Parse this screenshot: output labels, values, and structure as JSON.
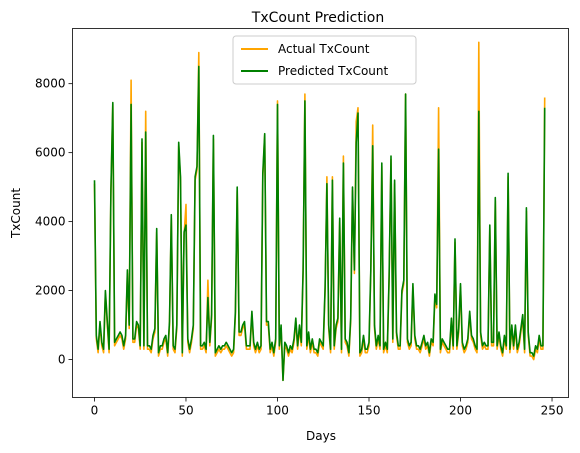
{
  "chart_data": {
    "type": "line",
    "title": "TxCount Prediction",
    "xlabel": "Days",
    "ylabel": "TxCount",
    "xlim": [
      -12,
      259
    ],
    "ylim": [
      -1100,
      9600
    ],
    "xticks": [
      0,
      50,
      100,
      150,
      200,
      250
    ],
    "yticks": [
      0,
      2000,
      4000,
      6000,
      8000
    ],
    "grid": false,
    "legend": "top-center",
    "colors": {
      "Actual TxCount": "#ffa500",
      "Predicted TxCount": "#008000"
    },
    "series": [
      {
        "name": "Actual TxCount",
        "values": [
          5100,
          600,
          200,
          1000,
          400,
          200,
          1900,
          1000,
          200,
          4800,
          7400,
          400,
          500,
          600,
          700,
          600,
          300,
          600,
          2500,
          900,
          8100,
          500,
          500,
          1000,
          900,
          300,
          6300,
          300,
          7200,
          300,
          300,
          200,
          600,
          800,
          3700,
          100,
          300,
          300,
          500,
          600,
          100,
          1000,
          4100,
          300,
          200,
          900,
          6200,
          5200,
          100,
          3600,
          4500,
          500,
          200,
          500,
          900,
          5200,
          5500,
          8900,
          300,
          300,
          400,
          200,
          2300,
          400,
          1200,
          6400,
          100,
          200,
          300,
          200,
          300,
          300,
          400,
          300,
          200,
          100,
          200,
          1300,
          4900,
          700,
          700,
          900,
          1000,
          300,
          300,
          300,
          1300,
          400,
          200,
          400,
          200,
          300,
          5300,
          6500,
          1000,
          1000,
          200,
          400,
          100,
          500,
          7500,
          300,
          900,
          -600,
          400,
          300,
          100,
          300,
          200,
          500,
          1100,
          300,
          900,
          400,
          2500,
          7700,
          300,
          700,
          200,
          500,
          200,
          200,
          100,
          500,
          400,
          300,
          2000,
          5300,
          900,
          200,
          5300,
          300,
          900,
          1100,
          4000,
          200,
          5900,
          500,
          400,
          100,
          1100,
          4900,
          2500,
          6900,
          7300,
          100,
          200,
          600,
          200,
          200,
          400,
          2500,
          6800,
          900,
          300,
          600,
          300,
          5600,
          200,
          400,
          200,
          2300,
          5800,
          500,
          5100,
          700,
          300,
          300,
          1900,
          2200,
          7700,
          500,
          300,
          400,
          2100,
          600,
          300,
          300,
          200,
          400,
          600,
          300,
          400,
          100,
          500,
          400,
          1800,
          1500,
          7300,
          200,
          500,
          400,
          300,
          200,
          200,
          1100,
          300,
          3400,
          300,
          800,
          2100,
          400,
          200,
          300,
          500,
          1300,
          600,
          500,
          300,
          200,
          9200,
          700,
          300,
          400,
          300,
          300,
          3800,
          400,
          400,
          4600,
          300,
          700,
          300,
          100,
          600,
          300,
          5300,
          200,
          900,
          300,
          900,
          200,
          400,
          800,
          1200,
          200,
          4300,
          700,
          100,
          100,
          0,
          300,
          200,
          600,
          300,
          300,
          7600
        ]
      },
      {
        "name": "Predicted TxCount",
        "values": [
          5200,
          700,
          300,
          1100,
          500,
          300,
          2000,
          1100,
          300,
          4900,
          7450,
          500,
          600,
          700,
          800,
          700,
          400,
          700,
          2600,
          1000,
          7400,
          600,
          600,
          1100,
          1000,
          400,
          6400,
          400,
          6600,
          400,
          400,
          300,
          700,
          900,
          3800,
          200,
          400,
          400,
          600,
          700,
          200,
          1100,
          4200,
          400,
          300,
          1000,
          6300,
          5300,
          200,
          3700,
          3900,
          600,
          300,
          600,
          1000,
          5300,
          5600,
          8500,
          400,
          400,
          500,
          300,
          1800,
          500,
          1300,
          6500,
          200,
          300,
          400,
          300,
          400,
          400,
          500,
          400,
          300,
          200,
          300,
          1400,
          5000,
          800,
          800,
          1000,
          1100,
          400,
          400,
          400,
          1400,
          500,
          300,
          500,
          300,
          400,
          5400,
          6550,
          1100,
          1100,
          300,
          500,
          200,
          600,
          7400,
          400,
          1000,
          -600,
          500,
          400,
          200,
          400,
          300,
          600,
          1200,
          400,
          1000,
          500,
          2600,
          7500,
          400,
          800,
          300,
          600,
          300,
          300,
          200,
          600,
          500,
          400,
          2100,
          5100,
          1000,
          300,
          5200,
          400,
          1000,
          1200,
          4100,
          300,
          5700,
          600,
          500,
          200,
          1200,
          5000,
          2600,
          6300,
          7150,
          200,
          300,
          700,
          300,
          300,
          500,
          2600,
          6200,
          1000,
          400,
          700,
          400,
          5700,
          300,
          500,
          300,
          2400,
          5900,
          600,
          5200,
          800,
          400,
          400,
          2000,
          2300,
          7700,
          600,
          400,
          500,
          2200,
          700,
          400,
          400,
          300,
          500,
          700,
          400,
          500,
          200,
          600,
          500,
          1900,
          1600,
          6100,
          300,
          600,
          500,
          400,
          300,
          300,
          1200,
          400,
          3500,
          400,
          900,
          2200,
          500,
          300,
          400,
          600,
          1400,
          700,
          600,
          400,
          300,
          7200,
          800,
          400,
          500,
          400,
          400,
          3900,
          500,
          500,
          4700,
          400,
          800,
          400,
          200,
          700,
          400,
          5400,
          300,
          1000,
          400,
          1000,
          300,
          500,
          900,
          1300,
          300,
          4400,
          800,
          200,
          200,
          100,
          400,
          300,
          700,
          400,
          400,
          7300
        ]
      }
    ]
  }
}
